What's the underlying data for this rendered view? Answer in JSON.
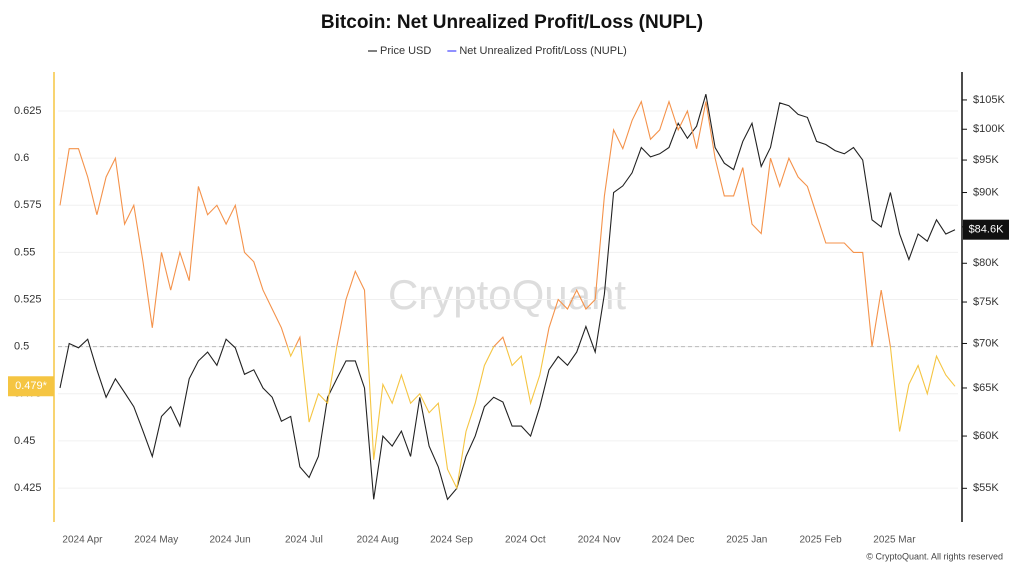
{
  "chart_data": {
    "type": "line",
    "title": "Bitcoin: Net Unrealized Profit/Loss (NUPL)",
    "watermark": "CryptoQuant",
    "credit": "© CryptoQuant. All rights reserved",
    "categories": [
      null,
      null,
      "2024 Apr",
      null,
      null,
      null,
      null,
      null,
      null,
      null,
      "2024 May",
      null,
      null,
      null,
      null,
      null,
      null,
      null,
      "2024 Jun",
      null,
      null,
      null,
      null,
      null,
      null,
      null,
      "2024 Jul",
      null,
      null,
      null,
      null,
      null,
      null,
      null,
      "2024 Aug",
      null,
      null,
      null,
      null,
      null,
      null,
      null,
      "2024 Sep",
      null,
      null,
      null,
      null,
      null,
      null,
      null,
      "2024 Oct",
      null,
      null,
      null,
      null,
      null,
      null,
      null,
      "2024 Nov",
      null,
      null,
      null,
      null,
      null,
      null,
      null,
      "2024 Dec",
      null,
      null,
      null,
      null,
      null,
      null,
      null,
      "2025 Jan",
      null,
      null,
      null,
      null,
      null,
      null,
      null,
      "2025 Feb",
      null,
      null,
      null,
      null,
      null,
      null,
      null,
      "2025 Mar",
      null,
      null,
      null,
      null,
      null,
      null,
      null
    ],
    "series": [
      {
        "name": "Price USD",
        "color": "#222222",
        "legend_color": "#555555",
        "axis": "y2",
        "values": [
          65000,
          70000,
          69500,
          70500,
          67000,
          64000,
          66000,
          64500,
          63000,
          60500,
          58000,
          62000,
          63000,
          61000,
          66000,
          68000,
          69000,
          67500,
          70500,
          69500,
          66500,
          67000,
          65000,
          64000,
          61500,
          62000,
          57000,
          56000,
          58000,
          64000,
          66000,
          68000,
          68000,
          65000,
          54000,
          60000,
          59000,
          60500,
          58000,
          64000,
          59000,
          57000,
          54000,
          55000,
          58000,
          60000,
          63000,
          64000,
          63500,
          61000,
          61000,
          60000,
          63000,
          67000,
          68500,
          67500,
          69000,
          72000,
          69000,
          76000,
          90000,
          91000,
          93000,
          97000,
          95500,
          96000,
          97000,
          101000,
          98500,
          100500,
          106000,
          97000,
          94500,
          93500,
          98000,
          101000,
          94000,
          97000,
          104500,
          104000,
          102500,
          102000,
          98000,
          97500,
          96500,
          96000,
          97000,
          95000,
          86000,
          85000,
          90000,
          84000,
          80500,
          84000,
          83000,
          86000,
          84000,
          84600
        ],
        "current_label": {
          "value": 84600,
          "label": "$84.6K"
        }
      },
      {
        "name": "Net Unrealized Profit/Loss (NUPL)",
        "color": "#f4924a",
        "color_below": "#f5c542",
        "legend_color": "#6b6bff",
        "values": [
          0.575,
          0.605,
          0.605,
          0.59,
          0.57,
          0.59,
          0.6,
          0.565,
          0.575,
          0.545,
          0.51,
          0.55,
          0.53,
          0.55,
          0.535,
          0.585,
          0.57,
          0.575,
          0.565,
          0.575,
          0.55,
          0.545,
          0.53,
          0.52,
          0.51,
          0.495,
          0.505,
          0.46,
          0.475,
          0.47,
          0.5,
          0.525,
          0.54,
          0.53,
          0.44,
          0.48,
          0.47,
          0.485,
          0.47,
          0.475,
          0.465,
          0.47,
          0.435,
          0.425,
          0.455,
          0.47,
          0.49,
          0.5,
          0.505,
          0.49,
          0.495,
          0.47,
          0.485,
          0.51,
          0.525,
          0.52,
          0.53,
          0.52,
          0.525,
          0.58,
          0.615,
          0.605,
          0.62,
          0.63,
          0.61,
          0.615,
          0.63,
          0.615,
          0.625,
          0.605,
          0.63,
          0.6,
          0.58,
          0.58,
          0.595,
          0.565,
          0.56,
          0.6,
          0.585,
          0.6,
          0.59,
          0.585,
          0.57,
          0.555,
          0.555,
          0.555,
          0.55,
          0.55,
          0.5,
          0.53,
          0.5,
          0.455,
          0.48,
          0.49,
          0.475,
          0.495,
          0.485,
          0.479
        ],
        "current_label": {
          "value": 0.479,
          "label": "0.479*"
        }
      }
    ],
    "ylim": [
      0.407,
      0.6457
    ],
    "yticks": [
      0.425,
      0.45,
      0.475,
      0.5,
      0.525,
      0.55,
      0.575,
      0.6,
      0.625
    ],
    "y2scale": "log",
    "y2lim": [
      52000,
      110000
    ],
    "y2ticks": [
      {
        "value": 55000,
        "label": "$55K"
      },
      {
        "value": 60000,
        "label": "$60K"
      },
      {
        "value": 65000,
        "label": "$65K"
      },
      {
        "value": 70000,
        "label": "$70K"
      },
      {
        "value": 75000,
        "label": "$75K"
      },
      {
        "value": 80000,
        "label": "$80K"
      },
      {
        "value": 85000,
        "label": "$85K"
      },
      {
        "value": 90000,
        "label": "$90K"
      },
      {
        "value": 95000,
        "label": "$95K"
      },
      {
        "value": 100000,
        "label": "$100K"
      },
      {
        "value": 105000,
        "label": "$105K"
      }
    ],
    "reference_line": 0.5,
    "grid": true,
    "left_axis_color": "#f5c542",
    "right_axis_color": "#111111"
  }
}
